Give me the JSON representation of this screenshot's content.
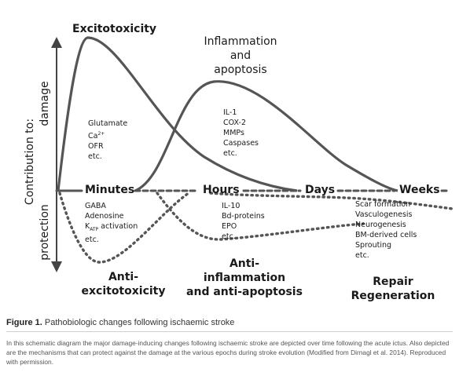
{
  "axis": {
    "label": "Contribution to:",
    "damage": "damage",
    "protection": "protection"
  },
  "time_labels": [
    "Minutes",
    "Hours",
    "Days",
    "Weeks"
  ],
  "damage_mechanisms": {
    "excitotoxicity": {
      "title": "Excitotoxicity",
      "items": [
        "Glutamate",
        "Ca2+",
        "OFR",
        "etc."
      ]
    },
    "inflammation": {
      "title_lines": [
        "Inflammation",
        "and",
        "apoptosis"
      ],
      "items": [
        "IL-1",
        "COX-2",
        "MMPs",
        "Caspases",
        "etc."
      ]
    }
  },
  "protective_mechanisms": {
    "anti_excitotoxicity": {
      "items": [
        "GABA",
        "Adenosine",
        "KATP activation",
        "etc."
      ],
      "title_lines": [
        "Anti-",
        "excitotoxicity"
      ]
    },
    "anti_inflammation": {
      "items": [
        "IL-10",
        "Bd-proteins",
        "EPO",
        "etc."
      ],
      "title_lines": [
        "Anti-",
        "inflammation",
        "and anti-apoptosis"
      ]
    },
    "repair": {
      "items": [
        "Scar formation",
        "Vasculogenesis",
        "Neurogenesis",
        "BM-derived cells",
        "Sprouting",
        "etc."
      ],
      "title_lines": [
        "Repair",
        "Regeneration"
      ]
    }
  },
  "caption": {
    "label": "Figure 1.",
    "title": "Pathobiologic changes following ischaemic stroke",
    "body": "In this schematic diagram the major damage-inducing changes following ischaemic stroke are depicted over time following the acute ictus. Also depicted are the mechanisms that can protect against the damage at the various epochs during stroke evolution (Modified from Dirnagl et al. 2014). Reproduced with permission."
  },
  "colors": {
    "curve": "#555555",
    "text": "#1a1a1a"
  }
}
